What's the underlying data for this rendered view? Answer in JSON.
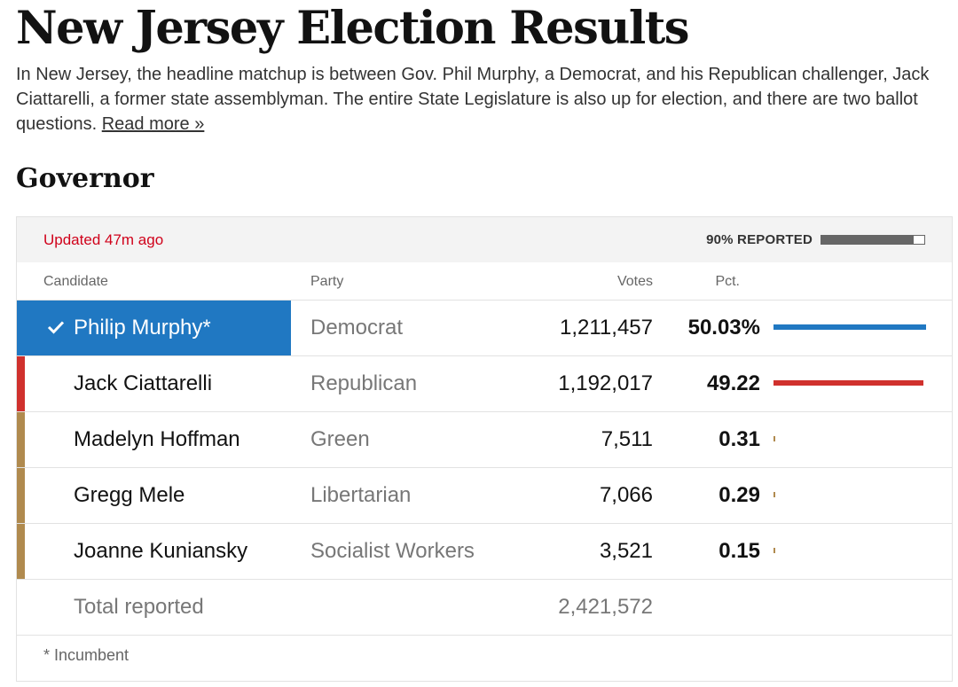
{
  "header": {
    "title": "New Jersey Election Results",
    "intro": "In New Jersey, the headline matchup is between Gov. Phil Murphy, a Democrat, and his Republican challenger, Jack Ciattarelli, a former state assemblyman. The entire State Legislature is also up for election, and there are two ballot questions.",
    "read_more": "Read more »"
  },
  "section": {
    "title": "Governor"
  },
  "results": {
    "updated": "Updated 47m ago",
    "reported_label": "90% REPORTED",
    "reported_fraction": 0.9,
    "columns": {
      "candidate": "Candidate",
      "party": "Party",
      "votes": "Votes",
      "pct": "Pct."
    },
    "candidates": [
      {
        "name": "Philip Murphy*",
        "party": "Democrat",
        "votes": "1,211,457",
        "pct": "50.03%",
        "pct_value": 50.03,
        "color": "#2078c2",
        "winner": true
      },
      {
        "name": "Jack Ciattarelli",
        "party": "Republican",
        "votes": "1,192,017",
        "pct": "49.22",
        "pct_value": 49.22,
        "color": "#d0312d",
        "winner": false
      },
      {
        "name": "Madelyn Hoffman",
        "party": "Green",
        "votes": "7,511",
        "pct": "0.31",
        "pct_value": 0.31,
        "color": "#b08a4e",
        "winner": false
      },
      {
        "name": "Gregg Mele",
        "party": "Libertarian",
        "votes": "7,066",
        "pct": "0.29",
        "pct_value": 0.29,
        "color": "#b08a4e",
        "winner": false
      },
      {
        "name": "Joanne Kuniansky",
        "party": "Socialist Workers",
        "votes": "3,521",
        "pct": "0.15",
        "pct_value": 0.15,
        "color": "#b08a4e",
        "winner": false
      }
    ],
    "total": {
      "label": "Total reported",
      "votes": "2,421,572"
    },
    "footnote": "* Incumbent",
    "reported_bar_color": "#666666"
  }
}
